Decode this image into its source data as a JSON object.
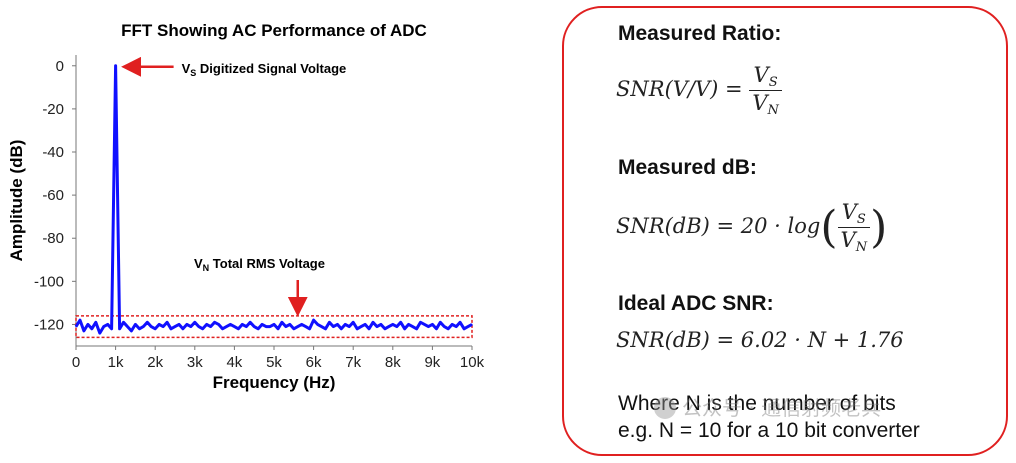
{
  "chart_data": {
    "type": "line",
    "title": "FFT Showing AC Performance of ADC",
    "xlabel": "Frequency (Hz)",
    "ylabel": "Amplitude (dB)",
    "xlim": [
      0,
      10000
    ],
    "ylim": [
      -130,
      5
    ],
    "x_ticks": [
      0,
      1000,
      2000,
      3000,
      4000,
      5000,
      6000,
      7000,
      8000,
      9000,
      10000
    ],
    "x_tick_labels": [
      "0",
      "1k",
      "2k",
      "3k",
      "4k",
      "5k",
      "6k",
      "7k",
      "8k",
      "9k",
      "10k"
    ],
    "y_ticks": [
      0,
      -20,
      -40,
      -60,
      -80,
      -100,
      -120
    ],
    "y_tick_labels": [
      "0",
      "-20",
      "-40",
      "-60",
      "-80",
      "-100",
      "-120"
    ],
    "grid": false,
    "series": [
      {
        "name": "FFT",
        "color": "#1010ff",
        "x": [
          0,
          100,
          200,
          300,
          400,
          500,
          600,
          700,
          800,
          900,
          1000,
          1100,
          1200,
          1300,
          1400,
          1500,
          1600,
          1700,
          1800,
          1900,
          2000,
          2100,
          2200,
          2300,
          2400,
          2500,
          2600,
          2700,
          2800,
          2900,
          3000,
          3100,
          3200,
          3300,
          3400,
          3500,
          3600,
          3700,
          3800,
          3900,
          4000,
          4100,
          4200,
          4300,
          4400,
          4500,
          4600,
          4700,
          4800,
          4900,
          5000,
          5100,
          5200,
          5300,
          5400,
          5500,
          5600,
          5700,
          5800,
          5900,
          6000,
          6100,
          6200,
          6300,
          6400,
          6500,
          6600,
          6700,
          6800,
          6900,
          7000,
          7100,
          7200,
          7300,
          7400,
          7500,
          7600,
          7700,
          7800,
          7900,
          8000,
          8100,
          8200,
          8300,
          8400,
          8500,
          8600,
          8700,
          8800,
          8900,
          9000,
          9100,
          9200,
          9300,
          9400,
          9500,
          9600,
          9700,
          9800,
          9900,
          10000
        ],
        "y": [
          -121,
          -118,
          -123,
          -120,
          -122,
          -119,
          -124,
          -121,
          -120,
          -122,
          0,
          -122,
          -119,
          -121,
          -123,
          -120,
          -122,
          -121,
          -119,
          -121,
          -122,
          -120,
          -121,
          -119,
          -122,
          -121,
          -120,
          -122,
          -120,
          -121,
          -119,
          -121,
          -122,
          -120,
          -121,
          -119,
          -120,
          -122,
          -121,
          -120,
          -121,
          -122,
          -120,
          -121,
          -119,
          -121,
          -122,
          -120,
          -121,
          -121,
          -120,
          -122,
          -119,
          -121,
          -120,
          -122,
          -121,
          -120,
          -121,
          -122,
          -118,
          -120,
          -121,
          -122,
          -119,
          -121,
          -120,
          -122,
          -120,
          -121,
          -119,
          -122,
          -121,
          -120,
          -122,
          -119,
          -121,
          -120,
          -122,
          -121,
          -120,
          -121,
          -119,
          -122,
          -120,
          -121,
          -122,
          -119,
          -120,
          -121,
          -120,
          -122,
          -119,
          -121,
          -122,
          -120,
          -121,
          -119,
          -122,
          -121,
          -120
        ]
      }
    ],
    "annotations": [
      {
        "main": "V",
        "sub": "S",
        "text": " Digitized Signal Voltage",
        "target": [
          1000,
          0
        ]
      },
      {
        "main": "V",
        "sub": "N",
        "text": " Total RMS Voltage",
        "target": [
          5600,
          -119
        ]
      }
    ],
    "noise_band": {
      "x": [
        0,
        10000
      ],
      "y": [
        -126,
        -116
      ],
      "color": "#e02020"
    }
  },
  "panel": {
    "heading1": "Measured Ratio:",
    "heading2": "Measured dB:",
    "heading3": "Ideal ADC SNR:",
    "eq1_left": "SNR(V/V) = ",
    "eq1_num": "V",
    "eq1_num_sub": "S",
    "eq1_den": "V",
    "eq1_den_sub": "N",
    "eq2_left": "SNR(dB) = 20 · log",
    "eq2_num": "V",
    "eq2_num_sub": "S",
    "eq2_den": "V",
    "eq2_den_sub": "N",
    "eq3": "SNR(dB) = 6.02 · N + 1.76",
    "note1": "Where N is the number of bits",
    "note2": "e.g. N = 10 for a 10 bit converter",
    "watermark": "公众号 · 通信射频老兵",
    "border_color": "#e02020"
  }
}
